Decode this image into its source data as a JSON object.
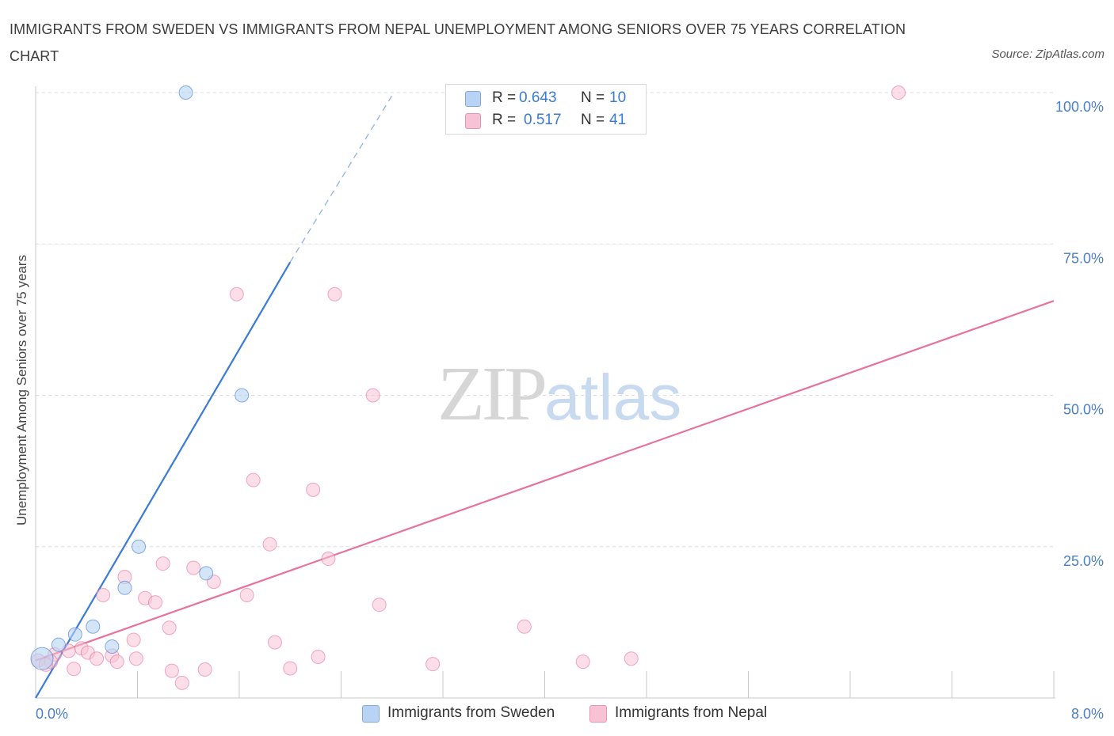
{
  "title": "IMMIGRANTS FROM SWEDEN VS IMMIGRANTS FROM NEPAL UNEMPLOYMENT AMONG SENIORS OVER 75 YEARS CORRELATION CHART",
  "source": "Source: ZipAtlas.com",
  "watermark": {
    "zip": "ZIP",
    "atlas": "atlas"
  },
  "legend": {
    "sweden": {
      "r_label": "R =",
      "r_value": "0.643",
      "n_label": "N =",
      "n_value": "10"
    },
    "nepal": {
      "r_label": "R =",
      "r_value": "0.517",
      "n_label": "N =",
      "n_value": "41"
    }
  },
  "bottom_legend": {
    "sweden": "Immigrants from Sweden",
    "nepal": "Immigrants from Nepal"
  },
  "chart_data": {
    "type": "scatter",
    "title": "IMMIGRANTS FROM SWEDEN VS IMMIGRANTS FROM NEPAL UNEMPLOYMENT AMONG SENIORS OVER 75 YEARS CORRELATION CHART",
    "xlabel": "",
    "ylabel": "Unemployment Among Seniors over 75 years",
    "xlim": [
      0,
      8
    ],
    "ylim": [
      0,
      100
    ],
    "x_tick_labels": {
      "left": "0.0%",
      "right": "8.0%"
    },
    "y_tick_labels": [
      "100.0%",
      "75.0%",
      "50.0%",
      "25.0%"
    ],
    "y_ticks": [
      100,
      75,
      50,
      25
    ],
    "grid": true,
    "colors": {
      "sweden": "#3a7bd5",
      "sweden_fill": "#b8d3f4",
      "nepal": "#e8739a",
      "nepal_fill": "#f7c3d4",
      "axis_text": "#4a7fc9"
    },
    "series": [
      {
        "name": "Immigrants from Sweden",
        "points": [
          [
            1.18,
            100
          ],
          [
            1.62,
            50
          ],
          [
            0.81,
            25
          ],
          [
            1.34,
            20.6
          ],
          [
            0.7,
            18.2
          ],
          [
            0.45,
            11.8
          ],
          [
            0.31,
            10.5
          ],
          [
            0.6,
            8.5
          ],
          [
            0.18,
            8.8
          ],
          [
            0.05,
            6.5
          ]
        ],
        "trend": {
          "x": [
            0,
            2.0
          ],
          "y": [
            0,
            72
          ],
          "dashed_to": [
            2.8,
            99.5
          ]
        }
      },
      {
        "name": "Immigrants from Nepal",
        "points": [
          [
            6.78,
            100
          ],
          [
            1.58,
            66.7
          ],
          [
            2.35,
            66.7
          ],
          [
            2.65,
            50
          ],
          [
            1.71,
            36
          ],
          [
            2.18,
            34.4
          ],
          [
            1.84,
            25.4
          ],
          [
            2.3,
            23
          ],
          [
            1.0,
            22.2
          ],
          [
            1.24,
            21.5
          ],
          [
            0.7,
            20
          ],
          [
            1.4,
            19.2
          ],
          [
            0.86,
            16.5
          ],
          [
            0.53,
            17
          ],
          [
            1.66,
            17
          ],
          [
            0.94,
            15.8
          ],
          [
            2.7,
            15.4
          ],
          [
            1.05,
            11.6
          ],
          [
            3.84,
            11.8
          ],
          [
            0.77,
            9.6
          ],
          [
            1.88,
            9.2
          ],
          [
            0.36,
            8.2
          ],
          [
            0.26,
            7.8
          ],
          [
            0.41,
            7.5
          ],
          [
            0.15,
            7.2
          ],
          [
            0.6,
            7
          ],
          [
            0.79,
            6.5
          ],
          [
            0.48,
            6.5
          ],
          [
            0.64,
            6
          ],
          [
            2.22,
            6.8
          ],
          [
            0.12,
            6
          ],
          [
            0.02,
            6.2
          ],
          [
            0.08,
            5.5
          ],
          [
            3.12,
            5.6
          ],
          [
            4.3,
            6
          ],
          [
            4.68,
            6.5
          ],
          [
            0.3,
            4.8
          ],
          [
            1.07,
            4.5
          ],
          [
            2.0,
            4.9
          ],
          [
            1.33,
            4.7
          ],
          [
            1.15,
            2.5
          ]
        ],
        "trend": {
          "x": [
            0,
            8
          ],
          "y": [
            6.2,
            65.6
          ]
        }
      }
    ]
  }
}
